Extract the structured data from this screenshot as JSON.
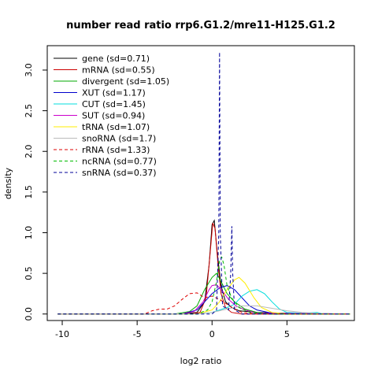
{
  "chart_data": {
    "type": "line",
    "title": "number read ratio rrp6.G1.2/mre11-H125.G1.2",
    "xlabel": "log2 ratio",
    "ylabel": "density",
    "xlim": [
      -11,
      9.5
    ],
    "ylim": [
      -0.08,
      3.3
    ],
    "x_ticks": [
      -10,
      -5,
      0,
      5
    ],
    "y_ticks": [
      0.0,
      0.5,
      1.0,
      1.5,
      2.0,
      2.5,
      3.0
    ],
    "x_tick_labels": [
      "-10",
      "-5",
      "0",
      "5"
    ],
    "y_tick_labels": [
      "0.0",
      "0.5",
      "1.0",
      "1.5",
      "2.0",
      "2.5",
      "3.0"
    ],
    "legend_position": "top-left",
    "grid": false,
    "series": [
      {
        "name": "gene (sd=0.71)",
        "color": "#000000",
        "dash": "solid",
        "points": [
          [
            -10.3,
            0
          ],
          [
            -2,
            0
          ],
          [
            -1,
            0.02
          ],
          [
            -0.5,
            0.15
          ],
          [
            -0.2,
            0.6
          ],
          [
            0,
            1.1
          ],
          [
            0.15,
            1.15
          ],
          [
            0.35,
            0.75
          ],
          [
            0.6,
            0.35
          ],
          [
            0.9,
            0.15
          ],
          [
            1.3,
            0.08
          ],
          [
            1.8,
            0.04
          ],
          [
            3,
            0.02
          ],
          [
            5,
            0.01
          ],
          [
            9.2,
            0
          ]
        ]
      },
      {
        "name": "mRNA (sd=0.55)",
        "color": "#cc0000",
        "dash": "solid",
        "points": [
          [
            -10.3,
            0
          ],
          [
            -1.5,
            0
          ],
          [
            -0.8,
            0.02
          ],
          [
            -0.4,
            0.2
          ],
          [
            -0.15,
            0.7
          ],
          [
            0.05,
            1.12
          ],
          [
            0.2,
            1.05
          ],
          [
            0.4,
            0.6
          ],
          [
            0.6,
            0.25
          ],
          [
            0.9,
            0.08
          ],
          [
            1.3,
            0.02
          ],
          [
            2,
            0
          ],
          [
            9.2,
            0
          ]
        ]
      },
      {
        "name": "divergent (sd=1.05)",
        "color": "#00aa00",
        "dash": "solid",
        "points": [
          [
            -10.3,
            0
          ],
          [
            -2.5,
            0
          ],
          [
            -1.5,
            0.03
          ],
          [
            -1,
            0.1
          ],
          [
            -0.5,
            0.3
          ],
          [
            0,
            0.45
          ],
          [
            0.3,
            0.5
          ],
          [
            0.6,
            0.4
          ],
          [
            1,
            0.25
          ],
          [
            1.5,
            0.15
          ],
          [
            2.2,
            0.06
          ],
          [
            3,
            0.02
          ],
          [
            4,
            0
          ],
          [
            9.2,
            0
          ]
        ]
      },
      {
        "name": "XUT (sd=1.17)",
        "color": "#0000cc",
        "dash": "solid",
        "points": [
          [
            -10.3,
            0
          ],
          [
            -2,
            0
          ],
          [
            -1,
            0.05
          ],
          [
            -0.5,
            0.15
          ],
          [
            0,
            0.25
          ],
          [
            0.5,
            0.32
          ],
          [
            1,
            0.35
          ],
          [
            1.5,
            0.3
          ],
          [
            2,
            0.2
          ],
          [
            2.5,
            0.1
          ],
          [
            3,
            0.05
          ],
          [
            4,
            0.01
          ],
          [
            9.2,
            0
          ]
        ]
      },
      {
        "name": "CUT (sd=1.45)",
        "color": "#00dddd",
        "dash": "solid",
        "points": [
          [
            -10.3,
            0
          ],
          [
            -1,
            0
          ],
          [
            0,
            0.02
          ],
          [
            1,
            0.08
          ],
          [
            1.5,
            0.12
          ],
          [
            2,
            0.22
          ],
          [
            2.5,
            0.28
          ],
          [
            3,
            0.3
          ],
          [
            3.5,
            0.25
          ],
          [
            4,
            0.15
          ],
          [
            4.5,
            0.06
          ],
          [
            5,
            0.02
          ],
          [
            6,
            0.01
          ],
          [
            7,
            0.02
          ],
          [
            7.5,
            0
          ],
          [
            9.2,
            0
          ]
        ]
      },
      {
        "name": "SUT (sd=0.94)",
        "color": "#cc00cc",
        "dash": "solid",
        "points": [
          [
            -10.3,
            0
          ],
          [
            -2,
            0
          ],
          [
            -1.2,
            0.03
          ],
          [
            -0.6,
            0.15
          ],
          [
            -0.2,
            0.3
          ],
          [
            0,
            0.35
          ],
          [
            0.3,
            0.36
          ],
          [
            0.7,
            0.28
          ],
          [
            1.1,
            0.18
          ],
          [
            1.6,
            0.1
          ],
          [
            2.2,
            0.05
          ],
          [
            3,
            0.01
          ],
          [
            9.2,
            0
          ]
        ]
      },
      {
        "name": "tRNA (sd=1.07)",
        "color": "#ffee00",
        "dash": "solid",
        "points": [
          [
            -10.3,
            0
          ],
          [
            -1,
            0
          ],
          [
            0,
            0.05
          ],
          [
            0.5,
            0.15
          ],
          [
            1,
            0.3
          ],
          [
            1.5,
            0.42
          ],
          [
            1.8,
            0.45
          ],
          [
            2.2,
            0.38
          ],
          [
            2.8,
            0.2
          ],
          [
            3.3,
            0.08
          ],
          [
            4,
            0.02
          ],
          [
            5,
            0
          ],
          [
            9.2,
            0
          ]
        ]
      },
      {
        "name": "snoRNA (sd=1.7)",
        "color": "#bbbbbb",
        "dash": "solid",
        "points": [
          [
            -10.3,
            0
          ],
          [
            -1,
            0
          ],
          [
            0,
            0.02
          ],
          [
            1,
            0.06
          ],
          [
            2,
            0.1
          ],
          [
            3,
            0.1
          ],
          [
            4,
            0.07
          ],
          [
            5,
            0.04
          ],
          [
            6,
            0.02
          ],
          [
            7,
            0.01
          ],
          [
            8,
            0
          ],
          [
            9.2,
            0
          ]
        ]
      },
      {
        "name": "rRNA (sd=1.33)",
        "color": "#dd0000",
        "dash": "dashed",
        "points": [
          [
            -10.3,
            0
          ],
          [
            -4.5,
            0
          ],
          [
            -4,
            0.04
          ],
          [
            -3.5,
            0.06
          ],
          [
            -3,
            0.06
          ],
          [
            -2.5,
            0.1
          ],
          [
            -2,
            0.18
          ],
          [
            -1.5,
            0.25
          ],
          [
            -1,
            0.26
          ],
          [
            -0.5,
            0.2
          ],
          [
            0,
            0.22
          ],
          [
            0.5,
            0.18
          ],
          [
            1,
            0.12
          ],
          [
            1.5,
            0.06
          ],
          [
            2,
            0.02
          ],
          [
            3,
            0
          ],
          [
            9.2,
            0
          ]
        ]
      },
      {
        "name": "ncRNA (sd=0.77)",
        "color": "#00bb00",
        "dash": "dashed",
        "points": [
          [
            -10.3,
            0
          ],
          [
            -1,
            0
          ],
          [
            -0.3,
            0.05
          ],
          [
            0,
            0.15
          ],
          [
            0.3,
            0.4
          ],
          [
            0.5,
            0.65
          ],
          [
            0.65,
            0.7
          ],
          [
            0.8,
            0.6
          ],
          [
            1,
            0.35
          ],
          [
            1.3,
            0.2
          ],
          [
            1.8,
            0.08
          ],
          [
            2.5,
            0.02
          ],
          [
            3.5,
            0
          ],
          [
            9.2,
            0
          ]
        ]
      },
      {
        "name": "snRNA (sd=0.37)",
        "color": "#000099",
        "dash": "dashed",
        "points": [
          [
            -10.3,
            0
          ],
          [
            0,
            0
          ],
          [
            0.3,
            0.05
          ],
          [
            0.45,
            1.0
          ],
          [
            0.5,
            3.22
          ],
          [
            0.55,
            1.0
          ],
          [
            0.7,
            0.1
          ],
          [
            1.1,
            0.05
          ],
          [
            1.25,
            0.5
          ],
          [
            1.32,
            1.08
          ],
          [
            1.38,
            0.5
          ],
          [
            1.5,
            0.05
          ],
          [
            2,
            0
          ],
          [
            9.2,
            0
          ]
        ]
      }
    ]
  }
}
